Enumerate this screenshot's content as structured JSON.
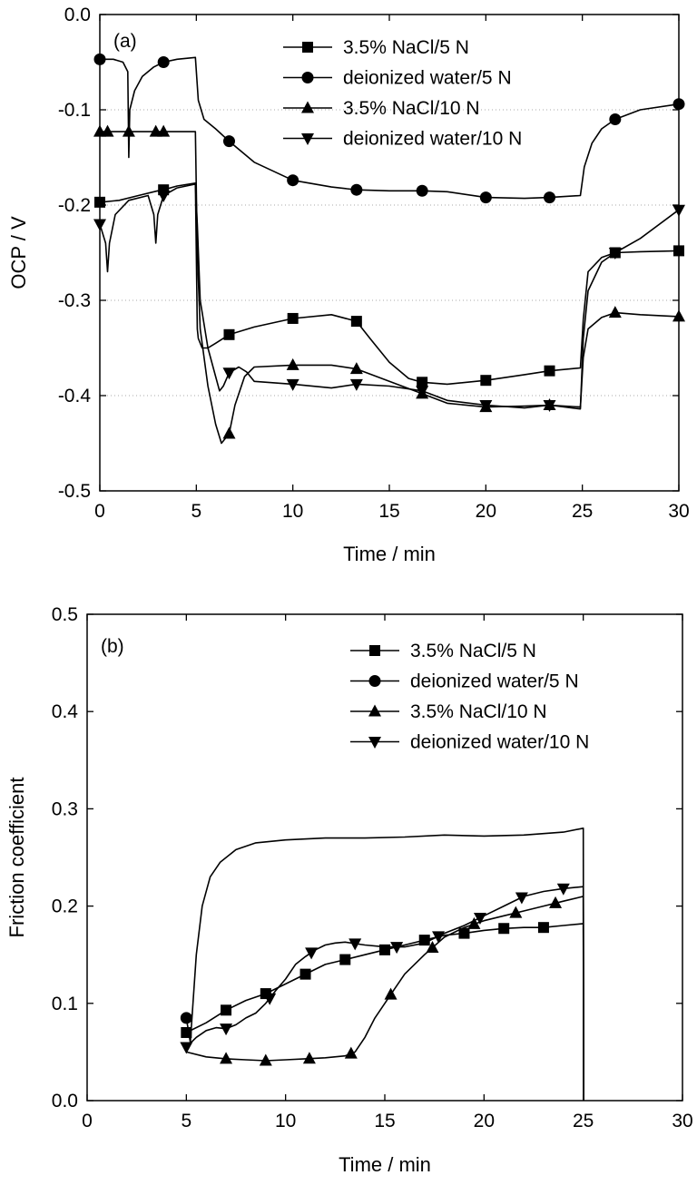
{
  "chart_data": [
    {
      "type": "line",
      "panel_label": "(a)",
      "xlabel": "Time / min",
      "ylabel": "OCP / V",
      "xlim": [
        0,
        30
      ],
      "ylim": [
        -0.5,
        0.0
      ],
      "xticks": [
        0,
        5,
        10,
        15,
        20,
        25,
        30
      ],
      "yticks": [
        0.0,
        -0.1,
        -0.2,
        -0.3,
        -0.4,
        -0.5
      ],
      "ytick_labels": [
        "0.0",
        "-0.1",
        "-0.2",
        "-0.3",
        "-0.4",
        "-0.5"
      ],
      "grid": "dotted horizontal",
      "legend_position": "top-right",
      "series": [
        {
          "name": "3.5% NaCl/5 N",
          "marker": "square",
          "x": [
            0,
            1,
            2,
            3,
            3.3,
            4,
            4.95,
            5.05,
            5.1,
            5.3,
            5.6,
            6.0,
            6.7,
            8,
            10,
            12,
            13.3,
            14,
            15,
            16,
            16.7,
            18,
            20,
            22,
            23.3,
            24.9,
            25.05,
            25.3,
            26,
            26.7,
            28,
            30
          ],
          "y": [
            -0.197,
            -0.195,
            -0.19,
            -0.185,
            -0.184,
            -0.18,
            -0.177,
            -0.33,
            -0.34,
            -0.35,
            -0.35,
            -0.345,
            -0.336,
            -0.328,
            -0.319,
            -0.315,
            -0.322,
            -0.34,
            -0.365,
            -0.382,
            -0.386,
            -0.388,
            -0.384,
            -0.378,
            -0.374,
            -0.371,
            -0.32,
            -0.27,
            -0.255,
            -0.25,
            -0.249,
            -0.248
          ],
          "marker_x": [
            0,
            3.3,
            6.7,
            10,
            13.3,
            16.7,
            20,
            23.3,
            26.7,
            30
          ]
        },
        {
          "name": "deionized water/5 N",
          "marker": "circle",
          "x": [
            0,
            0.7,
            1.2,
            1.45,
            1.5,
            1.55,
            1.8,
            2.2,
            2.8,
            3.3,
            4,
            4.95,
            5.1,
            5.4,
            6,
            6.7,
            8,
            10,
            12,
            13.3,
            15,
            16.7,
            18,
            20,
            22,
            23.3,
            24.9,
            25.1,
            25.5,
            26,
            26.7,
            28,
            30
          ],
          "y": [
            -0.047,
            -0.047,
            -0.05,
            -0.06,
            -0.15,
            -0.1,
            -0.08,
            -0.065,
            -0.055,
            -0.05,
            -0.047,
            -0.045,
            -0.09,
            -0.11,
            -0.12,
            -0.133,
            -0.155,
            -0.174,
            -0.181,
            -0.184,
            -0.185,
            -0.185,
            -0.186,
            -0.192,
            -0.193,
            -0.192,
            -0.19,
            -0.16,
            -0.135,
            -0.12,
            -0.11,
            -0.1,
            -0.094
          ],
          "marker_x": [
            0,
            3.3,
            6.7,
            10,
            13.3,
            16.7,
            20,
            23.3,
            26.7,
            30
          ]
        },
        {
          "name": "3.5% NaCl/10 N",
          "marker": "triangle-up",
          "x": [
            0,
            1,
            2,
            3,
            3.3,
            4,
            4.95,
            5.05,
            5.2,
            5.6,
            6,
            6.3,
            6.7,
            7,
            7.5,
            8,
            10,
            12,
            13.3,
            15,
            16.7,
            18,
            20,
            22,
            23.3,
            24.9,
            25.05,
            25.3,
            26,
            26.7,
            28,
            30
          ],
          "y": [
            -0.123,
            -0.123,
            -0.123,
            -0.123,
            -0.123,
            -0.123,
            -0.123,
            -0.25,
            -0.33,
            -0.39,
            -0.43,
            -0.45,
            -0.44,
            -0.41,
            -0.38,
            -0.37,
            -0.368,
            -0.368,
            -0.372,
            -0.385,
            -0.398,
            -0.408,
            -0.412,
            -0.411,
            -0.41,
            -0.412,
            -0.36,
            -0.33,
            -0.318,
            -0.313,
            -0.315,
            -0.317
          ],
          "marker_x": [
            0,
            3.3,
            6.7,
            10,
            13.3,
            16.7,
            20,
            23.3,
            26.7,
            30
          ],
          "spike_marker_x": [
            0.4,
            1.5,
            2.9
          ]
        },
        {
          "name": "deionized water/10 N",
          "marker": "triangle-down",
          "x": [
            0,
            0.3,
            0.4,
            0.5,
            0.8,
            1.5,
            2.5,
            2.8,
            2.9,
            3.0,
            3.3,
            4,
            4.95,
            5.05,
            5.2,
            5.6,
            6.0,
            6.2,
            6.4,
            6.7,
            7.2,
            7.6,
            8,
            10,
            12,
            13.3,
            15,
            16.7,
            18,
            20,
            22,
            23.3,
            24.9,
            25.05,
            25.3,
            26,
            26.7,
            28,
            30
          ],
          "y": [
            -0.22,
            -0.24,
            -0.27,
            -0.24,
            -0.21,
            -0.195,
            -0.19,
            -0.21,
            -0.24,
            -0.21,
            -0.19,
            -0.182,
            -0.178,
            -0.22,
            -0.3,
            -0.35,
            -0.38,
            -0.395,
            -0.39,
            -0.376,
            -0.37,
            -0.375,
            -0.385,
            -0.388,
            -0.392,
            -0.388,
            -0.39,
            -0.395,
            -0.405,
            -0.41,
            -0.413,
            -0.41,
            -0.414,
            -0.34,
            -0.29,
            -0.26,
            -0.25,
            -0.235,
            -0.205
          ],
          "marker_x": [
            0,
            3.3,
            6.7,
            10,
            13.3,
            16.7,
            20,
            23.3,
            26.7,
            30
          ]
        }
      ]
    },
    {
      "type": "line",
      "panel_label": "(b)",
      "xlabel": "Time / min",
      "ylabel": "Friction coefficient",
      "xlim": [
        0,
        30
      ],
      "ylim": [
        0.0,
        0.5
      ],
      "xticks": [
        0,
        5,
        10,
        15,
        20,
        25,
        30
      ],
      "yticks": [
        0.0,
        0.1,
        0.2,
        0.3,
        0.4,
        0.5
      ],
      "ytick_labels": [
        "0.0",
        "0.1",
        "0.2",
        "0.3",
        "0.4",
        "0.5"
      ],
      "grid": "none",
      "legend_position": "top-right",
      "series": [
        {
          "name": "3.5% NaCl/5 N",
          "marker": "square",
          "x": [
            5,
            6,
            7,
            8,
            9,
            10,
            11,
            12,
            13,
            14,
            15,
            16,
            17,
            18,
            19,
            20,
            21,
            22,
            23,
            24,
            25,
            25.02
          ],
          "y": [
            0.07,
            0.08,
            0.093,
            0.103,
            0.11,
            0.12,
            0.13,
            0.14,
            0.145,
            0.15,
            0.155,
            0.16,
            0.165,
            0.17,
            0.172,
            0.175,
            0.177,
            0.178,
            0.178,
            0.18,
            0.182,
            0.0
          ],
          "marker_x": [
            5,
            7,
            9,
            11,
            13,
            15,
            17,
            19,
            21,
            23
          ]
        },
        {
          "name": "deionized water/5 N",
          "marker": "circle",
          "x": [
            5,
            5.2,
            5.5,
            5.8,
            6.2,
            6.7,
            7.5,
            8.5,
            10,
            12,
            14,
            16,
            18,
            20,
            22,
            24,
            25,
            25.02
          ],
          "y": [
            0.085,
            0.06,
            0.15,
            0.2,
            0.23,
            0.245,
            0.258,
            0.265,
            0.268,
            0.27,
            0.27,
            0.271,
            0.273,
            0.272,
            0.273,
            0.276,
            0.28,
            0.0
          ],
          "marker_x": [
            5
          ]
        },
        {
          "name": "3.5% NaCl/10 N",
          "marker": "triangle-up",
          "x": [
            5,
            6,
            7,
            8,
            9,
            10,
            11,
            12,
            13,
            13.5,
            14,
            14.5,
            15,
            15.5,
            16,
            17,
            18,
            19,
            20,
            21,
            22,
            23,
            24,
            25,
            25.02
          ],
          "y": [
            0.05,
            0.045,
            0.043,
            0.042,
            0.041,
            0.042,
            0.043,
            0.044,
            0.046,
            0.05,
            0.065,
            0.085,
            0.1,
            0.115,
            0.13,
            0.15,
            0.168,
            0.178,
            0.185,
            0.19,
            0.195,
            0.2,
            0.205,
            0.21,
            0.0
          ],
          "marker_x": [
            7,
            9,
            11.2,
            13.3,
            15.3,
            17.4,
            19.5,
            21.6,
            23.6
          ]
        },
        {
          "name": "deionized water/10 N",
          "marker": "triangle-down",
          "x": [
            5,
            5.5,
            6,
            6.5,
            7,
            7.5,
            8,
            8.5,
            9,
            9.5,
            10,
            10.5,
            11,
            11.5,
            12,
            12.5,
            13,
            14,
            15,
            16,
            17,
            18,
            19,
            20,
            21,
            22,
            23,
            24,
            25,
            25.02
          ],
          "y": [
            0.055,
            0.065,
            0.072,
            0.075,
            0.074,
            0.078,
            0.085,
            0.09,
            0.1,
            0.113,
            0.125,
            0.14,
            0.148,
            0.155,
            0.16,
            0.162,
            0.163,
            0.16,
            0.158,
            0.158,
            0.162,
            0.172,
            0.18,
            0.19,
            0.2,
            0.21,
            0.215,
            0.218,
            0.22,
            0.0
          ],
          "marker_x": [
            5,
            7,
            9.2,
            11.3,
            13.5,
            15.6,
            17.7,
            19.8,
            21.9,
            24
          ]
        }
      ]
    }
  ]
}
